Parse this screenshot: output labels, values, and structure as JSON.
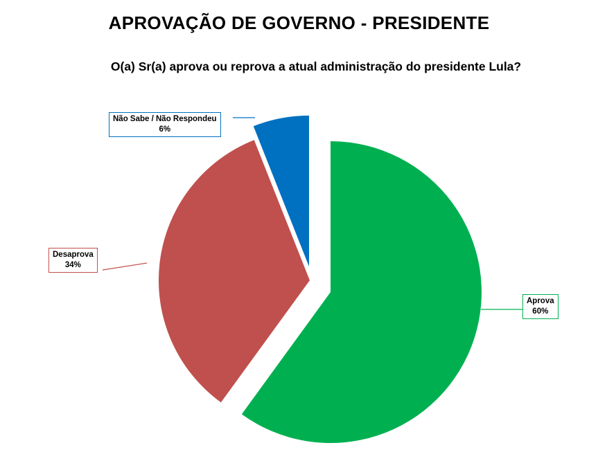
{
  "title": "APROVAÇÃO DE GOVERNO - PRESIDENTE",
  "subtitle": "O(a) Sr(a) aprova ou reprova a atual administração do presidente Lula?",
  "chart_data": {
    "type": "pie",
    "title": "APROVAÇÃO DE GOVERNO - PRESIDENTE",
    "subtitle": "O(a) Sr(a) aprova ou reprova a atual administração do presidente Lula?",
    "exploded": true,
    "slices": [
      {
        "label": "Aprova",
        "value": 60,
        "value_label": "60%",
        "color": "#00b050"
      },
      {
        "label": "Desaprova",
        "value": 34,
        "value_label": "34%",
        "color": "#c0504d"
      },
      {
        "label": "Não Sabe / Não Respondeu",
        "value": 6,
        "value_label": "6%",
        "color": "#0070c0"
      }
    ]
  }
}
